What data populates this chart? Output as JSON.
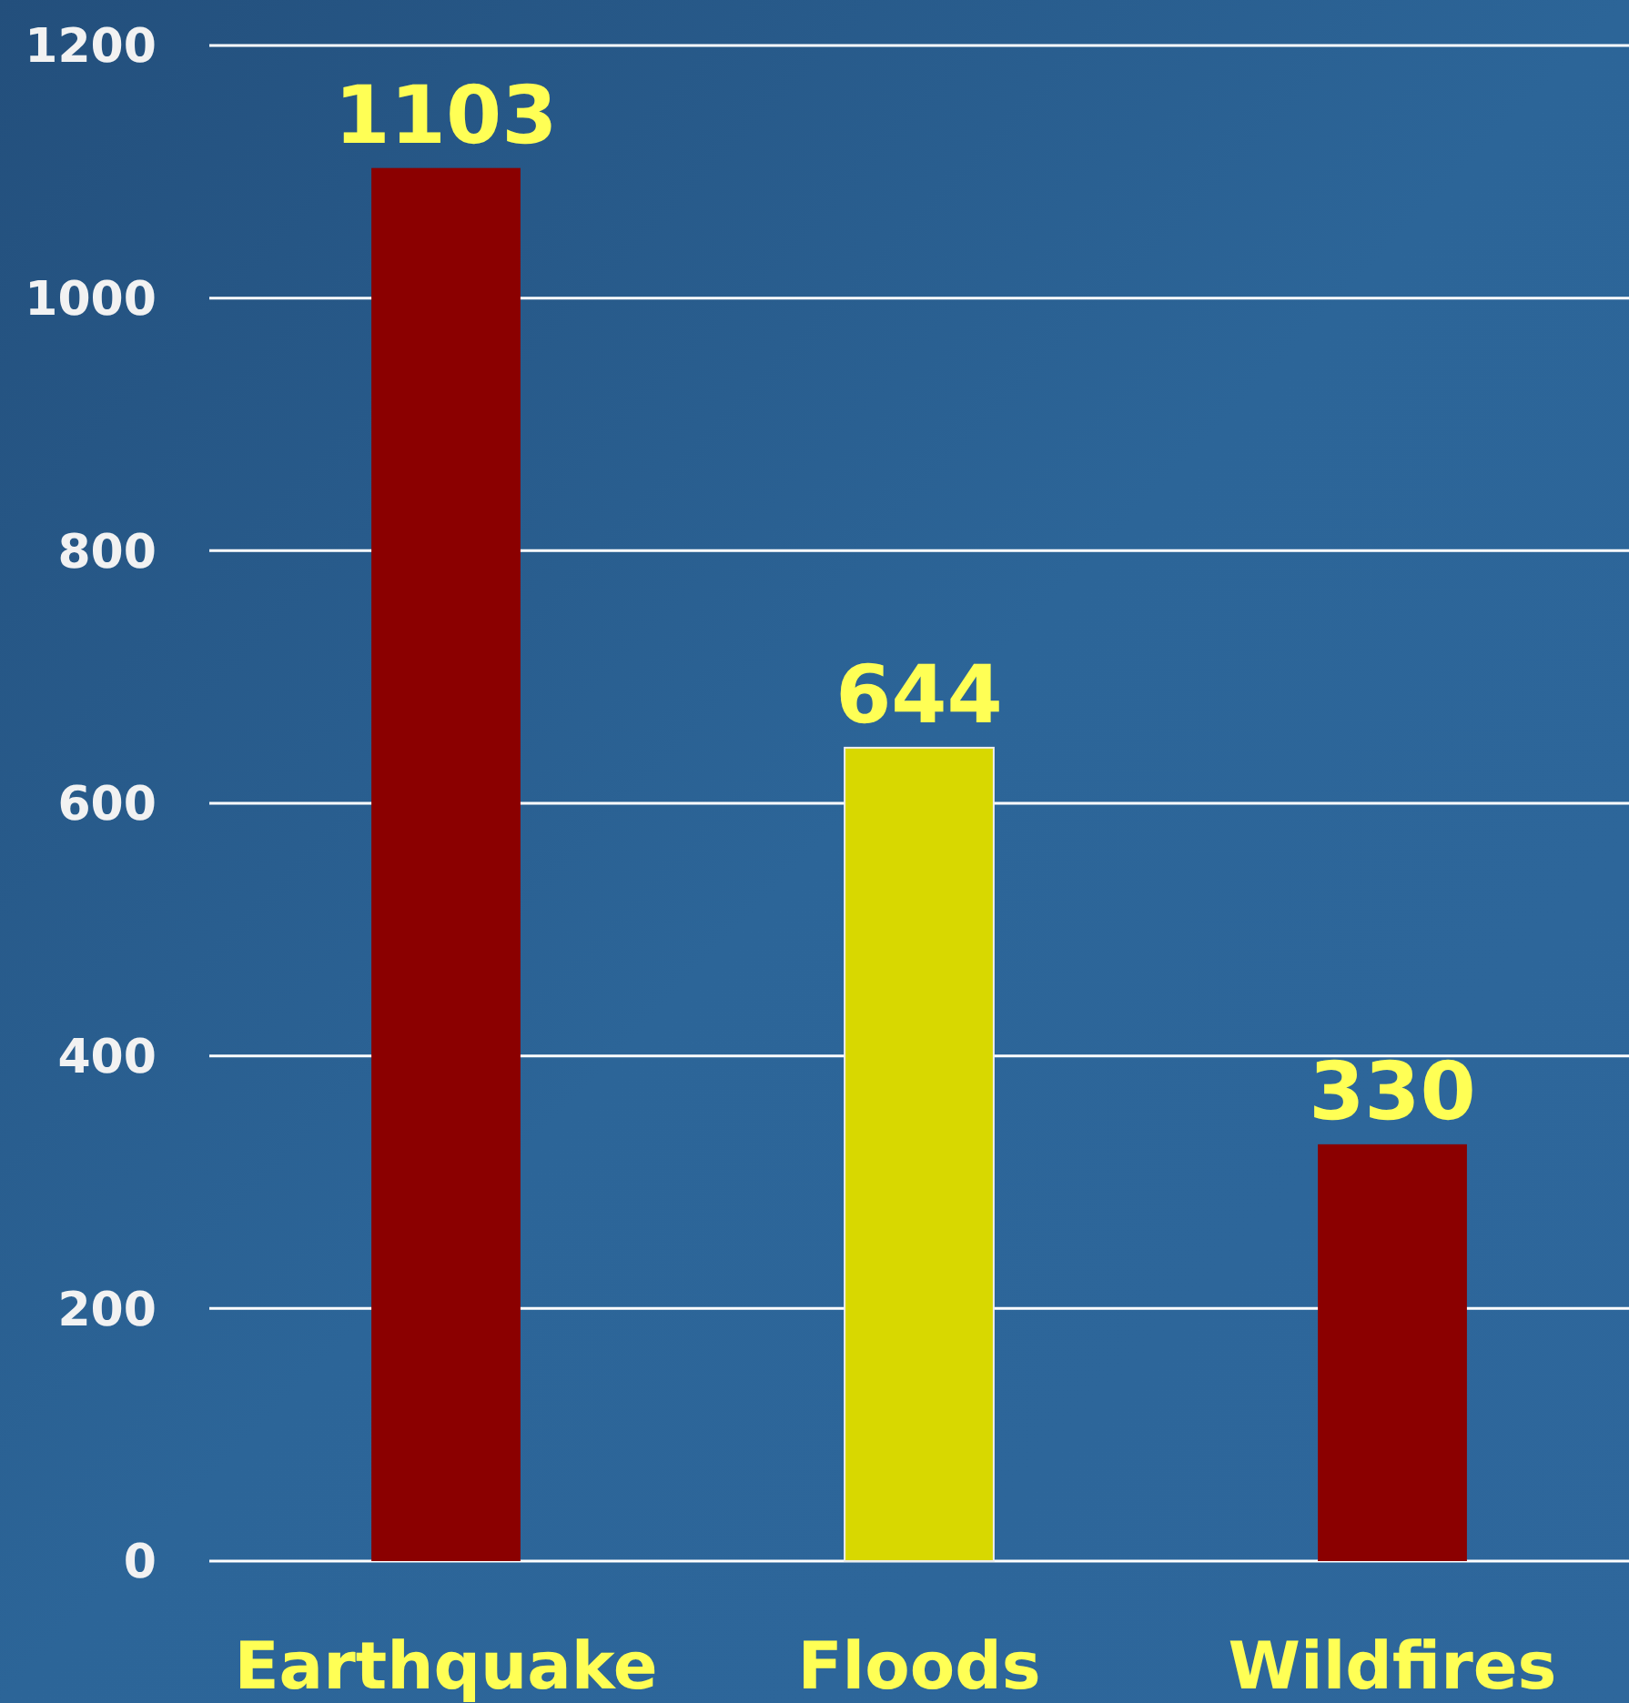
{
  "chart_data": {
    "type": "bar",
    "categories": [
      "Earthquake",
      "Floods",
      "Wildfires"
    ],
    "values": [
      1103,
      644,
      330
    ],
    "colors": [
      "#8b0000",
      "#d8d800",
      "#8b0000"
    ],
    "ylim": [
      0,
      1200
    ],
    "yticks": [
      0,
      200,
      400,
      600,
      800,
      1000,
      1200
    ],
    "grid": "y",
    "data_labels": true
  }
}
